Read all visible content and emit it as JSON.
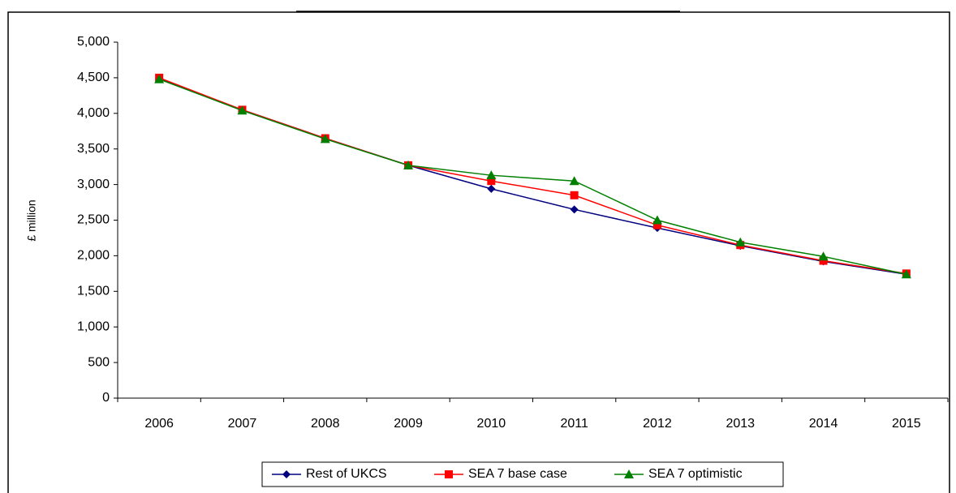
{
  "chart_data": {
    "type": "line",
    "y_label": "£ million",
    "categories": [
      "2006",
      "2007",
      "2008",
      "2009",
      "2010",
      "2011",
      "2012",
      "2013",
      "2014",
      "2015"
    ],
    "series": [
      {
        "name": "Rest of UKCS",
        "color": "#000080",
        "marker": "diamond",
        "values": [
          4490,
          4050,
          3650,
          3270,
          2940,
          2650,
          2390,
          2140,
          1920,
          1740
        ]
      },
      {
        "name": "SEA 7 base case",
        "color": "#ff0000",
        "marker": "square",
        "values": [
          4500,
          4050,
          3650,
          3270,
          3050,
          2850,
          2430,
          2150,
          1930,
          1750
        ]
      },
      {
        "name": "SEA 7 optimistic",
        "color": "#008000",
        "marker": "triangle",
        "values": [
          4480,
          4040,
          3640,
          3270,
          3130,
          3050,
          2500,
          2190,
          1990,
          1740
        ]
      }
    ],
    "ylim": [
      0,
      5000
    ],
    "yticks": [
      0,
      500,
      {
        "value": 1000,
        "label": "1,000"
      },
      {
        "value": 1500,
        "label": "1,500"
      },
      {
        "value": 2000,
        "label": "2,000"
      },
      {
        "value": 2500,
        "label": "2,500"
      },
      {
        "value": 3000,
        "label": "3,000"
      },
      {
        "value": 3500,
        "label": "3,500"
      },
      {
        "value": 4000,
        "label": "4,000"
      },
      {
        "value": 4500,
        "label": "4,500"
      },
      {
        "value": 5000,
        "label": "5,000"
      }
    ],
    "legend": "bottom"
  }
}
